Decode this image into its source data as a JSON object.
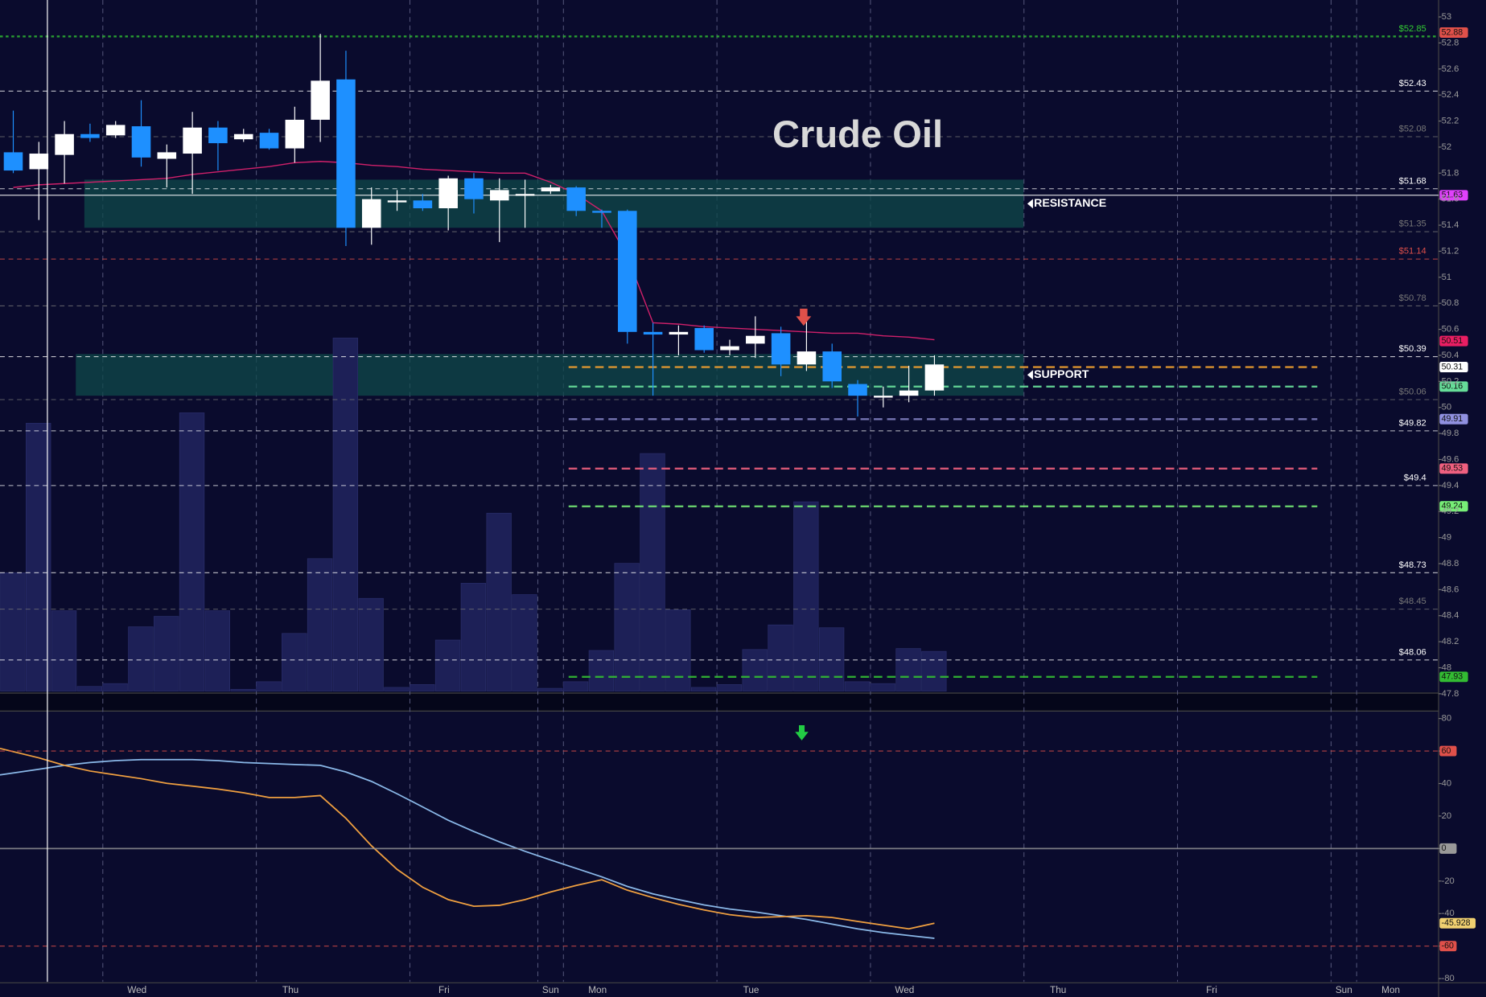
{
  "chart_data": [
    {
      "type": "candlestick",
      "title": "Crude Oil",
      "categories": [
        null,
        null,
        null,
        null,
        "Wed",
        null,
        null,
        null,
        null,
        null,
        "Thu",
        null,
        null,
        null,
        null,
        null,
        "Fri",
        null,
        null,
        null,
        null,
        "Sun",
        "Mon",
        null,
        null,
        null,
        null,
        null,
        "Tue",
        null,
        null,
        null,
        null,
        null,
        "Wed",
        null,
        null,
        null,
        null,
        null,
        "Thu",
        null,
        null,
        null,
        null,
        null,
        "Fri",
        null,
        null,
        null,
        null,
        null,
        "Sun",
        "Mon",
        null,
        null
      ],
      "open": [
        51.96,
        51.83,
        51.94,
        52.1,
        52.09,
        52.16,
        51.91,
        51.95,
        52.15,
        52.06,
        52.11,
        51.99,
        52.21,
        52.52,
        51.38,
        51.59,
        51.59,
        51.53,
        51.76,
        51.59,
        51.64,
        51.66,
        51.69,
        51.51,
        51.51,
        50.58,
        50.56,
        50.61,
        50.44,
        50.49,
        50.57,
        50.33,
        50.43,
        50.18,
        50.08,
        50.09,
        50.13,
        null,
        null,
        null,
        null,
        null,
        null,
        null,
        null,
        null,
        null,
        null,
        null,
        null,
        null,
        null,
        null,
        null,
        null,
        null
      ],
      "high": [
        52.28,
        52.04,
        52.2,
        52.18,
        52.2,
        52.36,
        52.02,
        52.27,
        52.2,
        52.14,
        52.14,
        52.31,
        52.87,
        52.74,
        51.69,
        51.67,
        51.64,
        51.78,
        51.8,
        51.76,
        51.75,
        51.71,
        51.7,
        51.52,
        51.52,
        50.65,
        50.63,
        50.63,
        50.52,
        50.7,
        50.62,
        50.73,
        50.49,
        50.21,
        50.16,
        50.32,
        50.4,
        null,
        null,
        null,
        null,
        null,
        null,
        null,
        null,
        null,
        null,
        null,
        null,
        null,
        null,
        null,
        null,
        null,
        null,
        null
      ],
      "low": [
        51.8,
        51.44,
        51.72,
        52.04,
        52.07,
        51.85,
        51.69,
        51.64,
        51.82,
        52.04,
        51.98,
        51.88,
        52.04,
        51.24,
        51.25,
        51.51,
        51.51,
        51.36,
        51.49,
        51.27,
        51.38,
        51.64,
        51.47,
        51.38,
        50.49,
        50.09,
        50.4,
        50.42,
        50.4,
        50.38,
        50.24,
        50.28,
        50.15,
        49.93,
        50.0,
        50.04,
        50.09,
        null,
        null,
        null,
        null,
        null,
        null,
        null,
        null,
        null,
        null,
        null,
        null,
        null,
        null,
        null,
        null,
        null,
        null,
        null
      ],
      "close": [
        51.82,
        51.95,
        52.1,
        52.07,
        52.17,
        51.92,
        51.96,
        52.15,
        52.03,
        52.1,
        51.99,
        52.21,
        52.51,
        51.38,
        51.6,
        51.59,
        51.53,
        51.76,
        51.6,
        51.67,
        51.64,
        51.69,
        51.51,
        51.5,
        50.58,
        50.56,
        50.58,
        50.44,
        50.47,
        50.55,
        50.33,
        50.43,
        50.2,
        50.09,
        50.09,
        50.13,
        50.33,
        null,
        null,
        null,
        null,
        null,
        null,
        null,
        null,
        null,
        null,
        null,
        null,
        null,
        null,
        null,
        null,
        null,
        null,
        null
      ],
      "up_color": "#ffffff",
      "down_color": "#1e90ff",
      "volume": [
        125,
        283,
        85,
        5,
        8,
        68,
        79,
        294,
        85,
        2,
        10,
        61,
        140,
        373,
        98,
        4,
        7,
        54,
        114,
        188,
        102,
        3,
        10,
        43,
        135,
        251,
        86,
        4,
        7,
        44,
        70,
        200,
        67,
        10,
        8,
        45,
        42,
        null,
        null,
        null,
        null,
        null,
        null,
        null,
        null,
        null,
        null,
        null,
        null,
        null,
        null,
        null,
        null,
        null,
        null,
        null
      ],
      "volume_color": "#1d2057",
      "vlim": [
        0,
        730
      ],
      "ma": {
        "color": "#d0206a",
        "values": [
          51.69,
          51.71,
          51.72,
          51.73,
          51.74,
          51.75,
          51.76,
          51.79,
          51.81,
          51.83,
          51.85,
          51.88,
          51.89,
          51.88,
          51.86,
          51.85,
          51.83,
          51.82,
          51.81,
          51.8,
          51.8,
          51.73,
          51.64,
          51.51,
          51.16,
          50.65,
          50.64,
          50.62,
          50.61,
          50.6,
          50.59,
          50.58,
          50.57,
          50.57,
          50.55,
          50.54,
          50.52,
          null,
          null,
          null,
          null,
          null,
          null,
          null,
          null,
          null,
          null,
          null,
          null,
          null,
          null,
          null,
          null,
          null,
          null,
          null
        ]
      },
      "ylim": [
        47.82,
        53.13
      ],
      "yticks": [
        53,
        52.8,
        52.6,
        52.4,
        52.2,
        52,
        51.8,
        51.6,
        51.4,
        51.2,
        51,
        50.8,
        50.6,
        50.4,
        50.2,
        50,
        49.8,
        49.6,
        49.4,
        49.2,
        49,
        48.8,
        48.6,
        48.4,
        48.2,
        48,
        47.8
      ],
      "levels": [
        {
          "value": 52.85,
          "label": "$52.85",
          "color": "#33cc33"
        },
        {
          "value": 52.43,
          "label": "$52.43",
          "color": "#ffffff"
        },
        {
          "value": 52.08,
          "label": "$52.08",
          "color": "#777777"
        },
        {
          "value": 51.68,
          "label": "$51.68",
          "color": "#ffffff"
        },
        {
          "value": 51.35,
          "label": "$51.35",
          "color": "#777777"
        },
        {
          "value": 51.14,
          "label": "$51.14",
          "color": "#e0504a"
        },
        {
          "value": 50.78,
          "label": "$50.78",
          "color": "#777777"
        },
        {
          "value": 50.39,
          "label": "$50.39",
          "color": "#ffffff"
        },
        {
          "value": 50.06,
          "label": "$50.06",
          "color": "#777777"
        },
        {
          "value": 49.82,
          "label": "$49.82",
          "color": "#ffffff"
        },
        {
          "value": 49.4,
          "label": "$49.4",
          "color": "#ffffff"
        },
        {
          "value": 48.73,
          "label": "$48.73",
          "color": "#ffffff"
        },
        {
          "value": 48.45,
          "label": "$48.45",
          "color": "#777777"
        },
        {
          "value": 48.06,
          "label": "$48.06",
          "color": "#ffffff"
        }
      ],
      "badges": [
        {
          "value": 52.88,
          "color": "#e0504a"
        },
        {
          "value": 51.63,
          "color": "#e040fb",
          "line_color": "#ffffff"
        },
        {
          "value": 50.51,
          "color": "#e91e63"
        },
        {
          "value": 50.31,
          "color": "#ffffff",
          "line_color": "#f0a030"
        },
        {
          "value": 50.16,
          "color": "#66dd99",
          "line_color": "#66dd99"
        },
        {
          "value": 49.91,
          "color": "#9090e0",
          "line_color": "#8080c0"
        },
        {
          "value": 49.53,
          "color": "#f06080",
          "line_color": "#f06080"
        },
        {
          "value": 49.24,
          "color": "#77ee77",
          "line_color": "#77ee77"
        },
        {
          "value": 47.93,
          "color": "#33bb33",
          "line_color": "#33bb33"
        }
      ],
      "zones": [
        {
          "label": "RESISTANCE",
          "top": 51.75,
          "bottom": 51.38
        },
        {
          "label": "SUPPORT",
          "top": 50.41,
          "bottom": 50.09
        }
      ]
    },
    {
      "type": "line",
      "series": [
        {
          "color": "#8ab8e8",
          "values": [
            45.3,
            48.8,
            51.2,
            52.9,
            54.1,
            54.7,
            54.7,
            54.7,
            54.1,
            52.9,
            52.3,
            51.7,
            51.2,
            47.1,
            41.3,
            33.7,
            25.6,
            17.4,
            10.5,
            4.1,
            -1.7,
            -7.0,
            -12.2,
            -17.4,
            -23.3,
            -27.9,
            -31.4,
            -34.7,
            -37.2,
            -39.0,
            -41.3,
            -43.6,
            -46.5,
            -49.4,
            -51.7,
            -53.5,
            -55.2,
            null,
            null,
            null,
            null,
            null,
            null,
            null,
            null,
            null,
            null,
            null,
            null,
            null,
            null,
            null,
            null,
            null,
            null,
            null
          ]
        },
        {
          "color": "#f0a040",
          "values": [
            61.6,
            55.8,
            51.2,
            47.7,
            45.3,
            43.0,
            40.1,
            38.4,
            36.6,
            34.3,
            31.4,
            31.4,
            32.6,
            18.6,
            1.7,
            -12.8,
            -23.8,
            -31.4,
            -35.5,
            -34.9,
            -31.4,
            -26.7,
            -22.7,
            -19.2,
            -25.6,
            -30.2,
            -34.3,
            -37.8,
            -40.7,
            -42.4,
            -41.9,
            -41.3,
            -42.4,
            -44.8,
            -47.1,
            -49.4,
            -45.928,
            null,
            null,
            null,
            null,
            null,
            null,
            null,
            null,
            null,
            null,
            null,
            null,
            null,
            null,
            null,
            null,
            null,
            null,
            null
          ]
        }
      ],
      "ylim": [
        -82,
        84
      ],
      "yticks": [
        80,
        60,
        40,
        20,
        0,
        -20,
        -40,
        -60,
        -80
      ],
      "badges": [
        {
          "value": 60,
          "color": "#e0504a",
          "line": "dashed"
        },
        {
          "value": 0,
          "color": "#999999",
          "line": "solid"
        },
        {
          "value": -60,
          "color": "#e0504a",
          "line": "dashed"
        }
      ],
      "value_badge_color": "#f0d070"
    }
  ]
}
